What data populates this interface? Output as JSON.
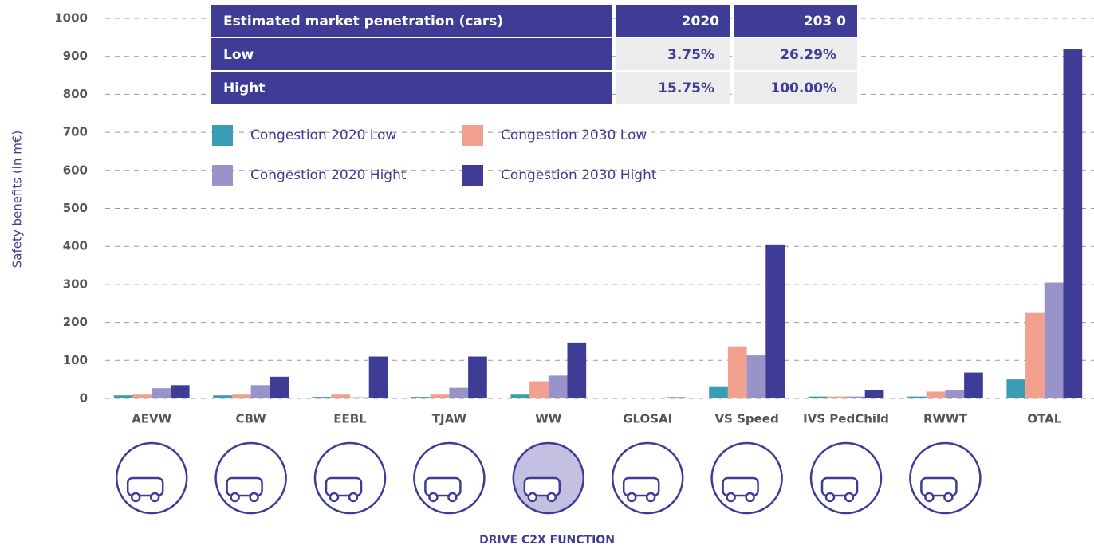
{
  "chart_data": {
    "type": "bar",
    "y_label": "Safety benefits (in m€)",
    "x_label": "DRIVE C2X FUNCTION",
    "categories": [
      "AEVW",
      "CBW",
      "EEBL",
      "TJAW",
      "WW",
      "GLOSAI",
      "VS Speed",
      "IVS PedChild",
      "RWWT",
      "OTAL"
    ],
    "series": [
      {
        "name": "Congestion 2020 Low",
        "color": "#3a9db3",
        "values": [
          8,
          8,
          4,
          4,
          10,
          0,
          30,
          5,
          5,
          50
        ]
      },
      {
        "name": "Congestion 2030 Low",
        "color": "#f0a08c",
        "values": [
          10,
          10,
          10,
          10,
          45,
          0,
          137,
          5,
          18,
          225
        ]
      },
      {
        "name": "Congestion 2020 Hight",
        "color": "#9893c9",
        "values": [
          27,
          35,
          3,
          28,
          60,
          2,
          113,
          5,
          22,
          305
        ]
      },
      {
        "name": "Congestion 2030 Hight",
        "color": "#3f3c95",
        "values": [
          35,
          57,
          110,
          110,
          147,
          3,
          405,
          22,
          68,
          920
        ]
      }
    ],
    "ylim": [
      0,
      1000
    ],
    "yticks": [
      0,
      100,
      200,
      300,
      400,
      500,
      600,
      700,
      800,
      900,
      1000
    ],
    "grid": true
  },
  "table": {
    "header": [
      "Estimated market penetration (cars)",
      "2020",
      "203 0"
    ],
    "rows": [
      [
        "Low",
        "3.75%",
        "26.29%"
      ],
      [
        "Hight",
        "15.75%",
        "100.00%"
      ]
    ]
  }
}
